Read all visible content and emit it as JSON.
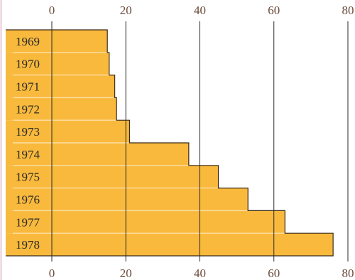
{
  "colors": {
    "bar_fill": "#F8B93C",
    "bar_stroke": "#3a2a1a",
    "separator": "#FCDFA6",
    "gridline": "#2a2a2a",
    "tick_label": "#6a4a3a",
    "category_label": "#2a2a2a",
    "background": "#ffffff",
    "edge_accent": "#E8C9D8"
  },
  "chart_data": {
    "type": "bar",
    "orientation": "horizontal",
    "categories": [
      "1969",
      "1970",
      "1971",
      "1972",
      "1973",
      "1974",
      "1975",
      "1976",
      "1977",
      "1978"
    ],
    "values": [
      15,
      15.5,
      17,
      17.5,
      21,
      37,
      45,
      53,
      63,
      76
    ],
    "xlim": [
      0,
      80
    ],
    "xticks": [
      "0",
      "20",
      "40",
      "60",
      "80"
    ],
    "grid": "vertical",
    "tick_labels_top_and_bottom": true
  }
}
